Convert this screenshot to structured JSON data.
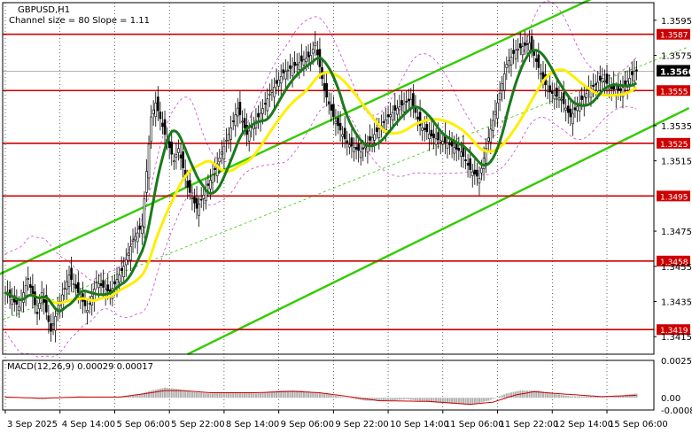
{
  "header": {
    "symbol": "GBPUSD,H1",
    "channel_info": "Channel size = 80 Slope = 1.11",
    "indicator_label": "MACD(12,26,9) 0.00029 0.00017"
  },
  "colors": {
    "background": "#ffffff",
    "candle": "#000000",
    "level_line": "#cc0000",
    "level_tag_bg": "#cc0000",
    "channel": "#33cc00",
    "ma_fast": "#1a7a1a",
    "ma_slow": "#ffee00",
    "bands": "#cc44cc",
    "macd_hist": "#b0b0b0",
    "macd_signal": "#cc0000",
    "current_tag_bg": "#000000"
  },
  "chart_data": {
    "type": "candlestick",
    "symbol": "GBPUSD",
    "timeframe": "H1",
    "y_ticks": [
      "1.3595",
      "1.3575",
      "1.3535",
      "1.3515",
      "1.3475",
      "1.3455",
      "1.3435",
      "1.3415"
    ],
    "ylim": [
      1.3405,
      1.3605
    ],
    "x_ticks": [
      "3 Sep 2025",
      "4 Sep 14:00",
      "5 Sep 06:00",
      "5 Sep 22:00",
      "8 Sep 14:00",
      "9 Sep 06:00",
      "9 Sep 22:00",
      "10 Sep 14:00",
      "11 Sep 06:00",
      "11 Sep 22:00",
      "12 Sep 14:00",
      "15 Sep 06:00"
    ],
    "levels": [
      "1.3587",
      "1.3555",
      "1.3525",
      "1.3495",
      "1.3458",
      "1.3419"
    ],
    "current_price": "1.3566",
    "close_path": [
      [
        0,
        1.344
      ],
      [
        6,
        1.3432
      ],
      [
        10,
        1.3448
      ],
      [
        14,
        1.3428
      ],
      [
        16,
        1.344
      ],
      [
        20,
        1.3418
      ],
      [
        24,
        1.3435
      ],
      [
        28,
        1.345
      ],
      [
        32,
        1.344
      ],
      [
        36,
        1.343
      ],
      [
        40,
        1.3446
      ],
      [
        46,
        1.344
      ],
      [
        52,
        1.3455
      ],
      [
        56,
        1.347
      ],
      [
        60,
        1.3478
      ],
      [
        64,
        1.354
      ],
      [
        66,
        1.3548
      ],
      [
        70,
        1.353
      ],
      [
        74,
        1.3515
      ],
      [
        76,
        1.3522
      ],
      [
        80,
        1.35
      ],
      [
        84,
        1.3488
      ],
      [
        88,
        1.3498
      ],
      [
        92,
        1.351
      ],
      [
        98,
        1.353
      ],
      [
        102,
        1.3545
      ],
      [
        106,
        1.353
      ],
      [
        112,
        1.3542
      ],
      [
        116,
        1.3553
      ],
      [
        122,
        1.3565
      ],
      [
        128,
        1.357
      ],
      [
        134,
        1.3575
      ],
      [
        136,
        1.3582
      ],
      [
        140,
        1.3555
      ],
      [
        144,
        1.354
      ],
      [
        150,
        1.3525
      ],
      [
        156,
        1.352
      ],
      [
        162,
        1.353
      ],
      [
        168,
        1.354
      ],
      [
        172,
        1.3545
      ],
      [
        178,
        1.355
      ],
      [
        182,
        1.3535
      ],
      [
        188,
        1.3528
      ],
      [
        194,
        1.3525
      ],
      [
        200,
        1.352
      ],
      [
        204,
        1.351
      ],
      [
        208,
        1.3505
      ],
      [
        212,
        1.3528
      ],
      [
        216,
        1.3548
      ],
      [
        220,
        1.357
      ],
      [
        224,
        1.3578
      ],
      [
        230,
        1.3582
      ],
      [
        234,
        1.3568
      ],
      [
        238,
        1.3555
      ],
      [
        244,
        1.355
      ],
      [
        248,
        1.354
      ],
      [
        252,
        1.3548
      ],
      [
        256,
        1.3555
      ],
      [
        262,
        1.3562
      ],
      [
        266,
        1.3556
      ],
      [
        270,
        1.3555
      ],
      [
        274,
        1.3562
      ],
      [
        276,
        1.3566
      ]
    ],
    "macd": {
      "values": [
        [
          0,
          0.0001
        ],
        [
          8,
          0.0
        ],
        [
          16,
          -0.0001
        ],
        [
          24,
          0.0
        ],
        [
          32,
          0.0001
        ],
        [
          40,
          5e-05
        ],
        [
          50,
          5e-05
        ],
        [
          58,
          0.0002
        ],
        [
          64,
          0.0005
        ],
        [
          70,
          0.0007
        ],
        [
          76,
          0.0006
        ],
        [
          82,
          0.0004
        ],
        [
          90,
          0.0003
        ],
        [
          100,
          0.0004
        ],
        [
          110,
          0.0003
        ],
        [
          120,
          0.0005
        ],
        [
          130,
          0.0005
        ],
        [
          140,
          0.0003
        ],
        [
          150,
          0.0
        ],
        [
          158,
          -0.0002
        ],
        [
          168,
          -0.0002
        ],
        [
          176,
          -0.0001
        ],
        [
          186,
          -0.0003
        ],
        [
          196,
          -0.0004
        ],
        [
          204,
          -0.0005
        ],
        [
          212,
          -0.0002
        ],
        [
          220,
          0.0003
        ],
        [
          226,
          0.0005
        ],
        [
          234,
          0.0005
        ],
        [
          240,
          0.0003
        ],
        [
          248,
          0.0001
        ],
        [
          256,
          0.0001
        ],
        [
          266,
          5e-05
        ],
        [
          276,
          0.00029
        ]
      ],
      "signal": [
        [
          0,
          5e-05
        ],
        [
          16,
          -3e-05
        ],
        [
          32,
          5e-05
        ],
        [
          50,
          5e-05
        ],
        [
          62,
          0.0003
        ],
        [
          70,
          0.0005
        ],
        [
          78,
          0.0005
        ],
        [
          90,
          0.00035
        ],
        [
          110,
          0.00035
        ],
        [
          126,
          0.00045
        ],
        [
          138,
          0.00035
        ],
        [
          150,
          0.0001
        ],
        [
          164,
          -0.0002
        ],
        [
          186,
          -0.00025
        ],
        [
          204,
          -0.00045
        ],
        [
          214,
          -0.0003
        ],
        [
          224,
          0.0002
        ],
        [
          232,
          0.00042
        ],
        [
          246,
          0.00025
        ],
        [
          262,
          8e-05
        ],
        [
          276,
          0.00017
        ]
      ],
      "y_ticks": [
        "0.00258",
        "0.00",
        "-0.00084"
      ]
    }
  }
}
